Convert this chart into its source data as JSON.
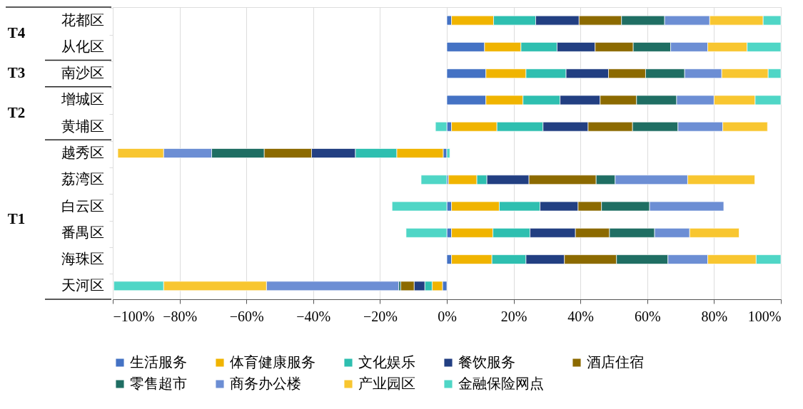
{
  "chart_data": {
    "type": "bar",
    "orientation": "horizontal",
    "stacked": true,
    "legend": "bottom",
    "grid": "x",
    "categories": [
      "花都区",
      "从化区",
      "南沙区",
      "增城区",
      "黄埔区",
      "越秀区",
      "荔湾区",
      "白云区",
      "番禺区",
      "海珠区",
      "天河区"
    ],
    "xlim": [
      -100,
      100
    ],
    "xticks": [
      {
        "value": -100,
        "label": "−100%"
      },
      {
        "value": -80,
        "label": "−80%"
      },
      {
        "value": -60,
        "label": "−60%"
      },
      {
        "value": -40,
        "label": "−40%"
      },
      {
        "value": -20,
        "label": "−20%"
      },
      {
        "value": 0,
        "label": "0%"
      },
      {
        "value": 20,
        "label": "20%"
      },
      {
        "value": 40,
        "label": "40%"
      },
      {
        "value": 60,
        "label": "60%"
      },
      {
        "value": 80,
        "label": "80%"
      },
      {
        "value": 100,
        "label": "100%"
      }
    ],
    "annotations": [
      "T4",
      "T3",
      "T2",
      "T1"
    ],
    "series": [
      {
        "name": "生活服务",
        "color": "#4472c4",
        "values": [
          1.4,
          11.3,
          11.7,
          11.7,
          1.4,
          -1.1,
          0.5,
          1.4,
          1.4,
          1.4,
          -1.3
        ]
      },
      {
        "name": "体育健康服务",
        "color": "#f0b400",
        "values": [
          12.6,
          10.9,
          12.0,
          11.1,
          13.6,
          -13.9,
          8.5,
          14.3,
          12.4,
          12.1,
          -3.1
        ]
      },
      {
        "name": "文化娱乐",
        "color": "#2ebfb0",
        "values": [
          12.6,
          10.8,
          12.0,
          11.1,
          13.8,
          -12.4,
          3.0,
          12.2,
          11.1,
          10.2,
          -2.2
        ]
      },
      {
        "name": "餐饮服务",
        "color": "#223f82",
        "values": [
          13.0,
          11.4,
          12.7,
          12.0,
          13.5,
          -13.1,
          12.6,
          11.4,
          13.6,
          11.5,
          -3.2
        ]
      },
      {
        "name": "酒店住宿",
        "color": "#8c6a00",
        "values": [
          12.7,
          11.4,
          11.1,
          10.9,
          13.3,
          -14.2,
          20.1,
          7.0,
          10.2,
          15.6,
          -4.0
        ]
      },
      {
        "name": "零售超市",
        "color": "#1f6e63",
        "values": [
          12.9,
          11.2,
          11.7,
          12.0,
          13.6,
          -15.7,
          5.7,
          14.4,
          13.5,
          15.4,
          -0.6
        ]
      },
      {
        "name": "商务办公楼",
        "color": "#6c8ed4",
        "values": [
          13.5,
          11.1,
          11.1,
          11.2,
          13.4,
          -14.4,
          21.7,
          22.2,
          10.5,
          11.9,
          -39.6
        ]
      },
      {
        "name": "产业园区",
        "color": "#f8c630",
        "values": [
          16.0,
          11.8,
          13.9,
          12.3,
          13.4,
          -13.7,
          20.1,
          null,
          14.8,
          14.5,
          -30.8
        ]
      },
      {
        "name": "金融保险网点",
        "color": "#4fd6c6",
        "values": [
          5.3,
          10.1,
          3.8,
          7.7,
          -3.4,
          0.9,
          -7.7,
          -16.4,
          -12.2,
          7.4,
          -14.9
        ]
      }
    ]
  }
}
